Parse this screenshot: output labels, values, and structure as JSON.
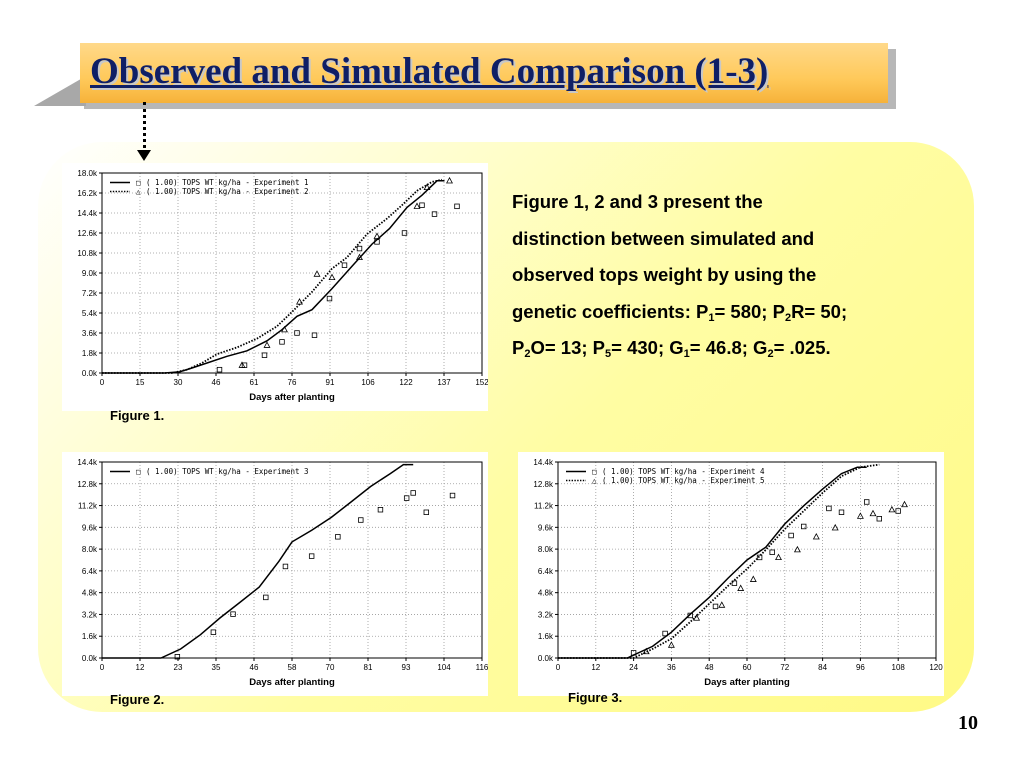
{
  "slide": {
    "title": "Observed and Simulated Comparison (1-3)",
    "page_number": "10"
  },
  "description": {
    "line1": "Figure 1, 2 and 3 present the",
    "line2": "distinction between simulated and",
    "line3": "observed tops weight by using the",
    "line4": {
      "a": "genetic coefficients: P",
      "sub1": "1",
      "b": "= 580; P",
      "sub2": "2",
      "c": "R= 50;"
    },
    "line5": {
      "a": "P",
      "sub1": "2",
      "b": "O= 13; P",
      "sub2": "5",
      "c": "= 430; G",
      "sub3": "1",
      "d": "= 46.8; G",
      "sub4": "2",
      "e": "= .025."
    }
  },
  "colors": {
    "title_text": "#0f1f66",
    "title_bar": "#ffc95a",
    "panel": "#fffda3"
  },
  "chart_data": [
    {
      "type": "line",
      "caption": "Figure 1.",
      "xlabel": "Days after planting",
      "ylabel": "",
      "xlim": [
        0,
        152
      ],
      "ylim": [
        0,
        18000
      ],
      "x_ticks": [
        "0",
        "15",
        "30",
        "46",
        "61",
        "76",
        "91",
        "106",
        "122",
        "137",
        "152"
      ],
      "y_ticks": [
        "0.0k",
        "1.8k",
        "3.6k",
        "5.4k",
        "7.2k",
        "9.0k",
        "10.8k",
        "12.6k",
        "14.4k",
        "16.2k",
        "18.0k"
      ],
      "grid": true,
      "legend_position": "top-left",
      "legend": [
        {
          "line_style": "solid",
          "marker": "□",
          "text": "(   1.00) TOPS WT kg/ha    - Experiment 1"
        },
        {
          "line_style": "dotted",
          "marker": "△",
          "text": "(   1.00) TOPS WT kg/ha    - Experiment 2"
        }
      ],
      "series": [
        {
          "kind": "simulated",
          "line_style": "solid",
          "x": [
            0,
            25,
            31,
            36,
            42,
            50,
            58,
            66,
            72,
            78,
            84,
            92,
            100,
            108,
            115,
            122,
            128,
            134,
            137
          ],
          "y": [
            0,
            0,
            100,
            450,
            900,
            1500,
            2000,
            2900,
            3900,
            5100,
            5700,
            7600,
            9600,
            11600,
            13000,
            14900,
            16000,
            17300,
            17300
          ]
        },
        {
          "kind": "simulated",
          "line_style": "dotted",
          "x": [
            0,
            28,
            34,
            40,
            46,
            54,
            62,
            70,
            76,
            84,
            92,
            98,
            106,
            114,
            120,
            126,
            132,
            136
          ],
          "y": [
            0,
            0,
            300,
            900,
            1700,
            2300,
            3100,
            4200,
            5500,
            7300,
            9400,
            10400,
            12500,
            13900,
            15100,
            16400,
            17200,
            17400
          ]
        },
        {
          "kind": "observed",
          "marker": "square",
          "x": [
            47,
            57,
            65,
            72,
            78,
            85,
            91,
            97,
            103,
            110,
            121,
            128,
            133,
            142
          ],
          "y": [
            300,
            700,
            1600,
            2800,
            3600,
            3400,
            6700,
            9700,
            11200,
            11800,
            12600,
            15100,
            14300,
            15000
          ]
        },
        {
          "kind": "observed",
          "marker": "triangle",
          "x": [
            56,
            66,
            73,
            79,
            86,
            92,
            103,
            110,
            126,
            130,
            139
          ],
          "y": [
            700,
            2500,
            3900,
            6400,
            8900,
            8600,
            10400,
            12300,
            15000,
            16700,
            17300
          ]
        }
      ]
    },
    {
      "type": "line",
      "caption": "Figure 2.",
      "xlabel": "Days after planting",
      "ylabel": "",
      "xlim": [
        0,
        116
      ],
      "ylim": [
        0,
        15200
      ],
      "x_ticks": [
        "0",
        "12",
        "23",
        "35",
        "46",
        "58",
        "70",
        "81",
        "93",
        "104",
        "116"
      ],
      "y_ticks": [
        "0.0k",
        "1.6k",
        "3.2k",
        "4.8k",
        "6.4k",
        "8.0k",
        "9.6k",
        "11.2k",
        "12.8k",
        "14.4k"
      ],
      "grid": true,
      "legend_position": "top-left",
      "legend": [
        {
          "line_style": "solid",
          "marker": "□",
          "text": "(   1.00) TOPS WT kg/ha    - Experiment 3"
        }
      ],
      "series": [
        {
          "kind": "simulated",
          "line_style": "solid",
          "x": [
            0,
            18,
            24,
            30,
            36,
            42,
            48,
            54,
            58,
            64,
            70,
            76,
            82,
            88,
            92,
            95
          ],
          "y": [
            0,
            0,
            700,
            1800,
            3100,
            4300,
            5500,
            7500,
            9000,
            9900,
            10900,
            12100,
            13300,
            14300,
            15000,
            15000
          ]
        },
        {
          "kind": "observed",
          "marker": "square",
          "x": [
            23,
            34,
            40,
            50,
            56,
            64,
            72,
            79,
            85,
            93,
            95,
            99,
            107
          ],
          "y": [
            100,
            2000,
            3400,
            4700,
            7100,
            7900,
            9400,
            10700,
            11500,
            12400,
            12800,
            11300,
            12600
          ]
        }
      ]
    },
    {
      "type": "line",
      "caption": "Figure 3.",
      "xlabel": "Days after planting",
      "ylabel": "",
      "xlim": [
        0,
        120
      ],
      "ylim": [
        0,
        15200
      ],
      "x_ticks": [
        "0",
        "12",
        "24",
        "36",
        "48",
        "60",
        "72",
        "84",
        "96",
        "108",
        "120"
      ],
      "y_ticks": [
        "0.0k",
        "1.6k",
        "3.2k",
        "4.8k",
        "6.4k",
        "8.0k",
        "9.6k",
        "11.2k",
        "12.8k",
        "14.4k"
      ],
      "grid": true,
      "legend_position": "top-left",
      "legend": [
        {
          "line_style": "solid",
          "marker": "□",
          "text": "(   1.00) TOPS WT kg/ha    - Experiment 4"
        },
        {
          "line_style": "dotted",
          "marker": "△",
          "text": "(   1.00) TOPS WT kg/ha    - Experiment 5"
        }
      ],
      "series": [
        {
          "kind": "simulated",
          "line_style": "solid",
          "x": [
            0,
            22,
            30,
            36,
            42,
            48,
            54,
            60,
            66,
            72,
            78,
            84,
            90,
            95,
            98
          ],
          "y": [
            0,
            0,
            900,
            2000,
            3400,
            4700,
            6200,
            7600,
            8600,
            10400,
            11800,
            13100,
            14300,
            14800,
            14800
          ]
        },
        {
          "kind": "simulated",
          "line_style": "dotted",
          "x": [
            0,
            24,
            30,
            36,
            42,
            48,
            54,
            60,
            66,
            72,
            78,
            84,
            90,
            96,
            102
          ],
          "y": [
            0,
            0,
            700,
            1500,
            2800,
            4200,
            5600,
            6900,
            8400,
            10000,
            11400,
            12800,
            14100,
            14800,
            15000
          ]
        },
        {
          "kind": "observed",
          "marker": "square",
          "x": [
            24,
            34,
            42,
            50,
            56,
            64,
            68,
            74,
            78,
            86,
            90,
            98,
            102,
            108
          ],
          "y": [
            400,
            1900,
            3300,
            4000,
            5800,
            7800,
            8200,
            9500,
            10200,
            11600,
            11300,
            12100,
            10800,
            11400
          ]
        },
        {
          "kind": "observed",
          "marker": "triangle",
          "x": [
            28,
            36,
            44,
            52,
            58,
            62,
            70,
            76,
            82,
            88,
            96,
            100,
            106,
            110
          ],
          "y": [
            500,
            1000,
            3100,
            4100,
            5400,
            6100,
            7800,
            8400,
            9400,
            10100,
            11000,
            11200,
            11500,
            11900
          ]
        }
      ]
    }
  ]
}
